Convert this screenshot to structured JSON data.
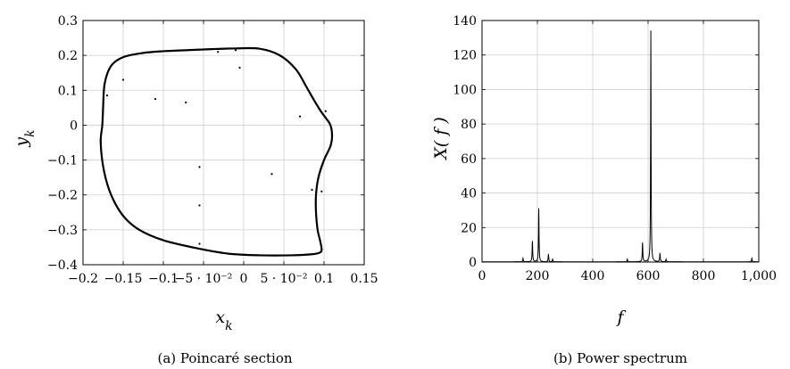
{
  "chart_data": [
    {
      "type": "scatter",
      "caption": "(a) Poincaré section",
      "xlabel": "x_k",
      "ylabel": "y_k",
      "xlim": [
        -0.2,
        0.15
      ],
      "ylim": [
        -0.4,
        0.3
      ],
      "grid": true,
      "x_tick_labels": [
        "−0.2",
        "−0.15",
        "−0.1",
        "−5 · 10⁻²",
        "0",
        "5 · 10⁻²",
        "0.1",
        "0.15"
      ],
      "x_ticks": [
        -0.2,
        -0.15,
        -0.1,
        -0.05,
        0,
        0.05,
        0.1,
        0.15
      ],
      "y_ticks": [
        -0.4,
        -0.3,
        -0.2,
        -0.1,
        0,
        0.1,
        0.2,
        0.3
      ],
      "y_tick_labels": [
        "−0.4",
        "−0.3",
        "−0.2",
        "−0.1",
        "0",
        "0.1",
        "0.2",
        "0.3"
      ],
      "curve": {
        "x": [
          -0.175,
          -0.173,
          -0.165,
          -0.15,
          -0.125,
          -0.1,
          -0.07,
          -0.04,
          -0.01,
          0.02,
          0.045,
          0.065,
          0.078,
          0.088,
          0.096,
          0.103,
          0.108,
          0.11,
          0.108,
          0.1,
          0.093,
          0.09,
          0.09,
          0.092,
          0.095,
          0.097,
          0.095,
          0.085,
          0.06,
          0.02,
          -0.02,
          -0.06,
          -0.1,
          -0.13,
          -0.15,
          -0.165,
          -0.174,
          -0.178,
          -0.176,
          -0.175
        ],
        "y": [
          0.05,
          0.12,
          0.17,
          0.195,
          0.207,
          0.212,
          0.215,
          0.218,
          0.22,
          0.219,
          0.2,
          0.16,
          0.11,
          0.07,
          0.04,
          0.018,
          0.0,
          -0.03,
          -0.06,
          -0.1,
          -0.15,
          -0.2,
          -0.25,
          -0.3,
          -0.33,
          -0.355,
          -0.365,
          -0.37,
          -0.373,
          -0.373,
          -0.368,
          -0.352,
          -0.33,
          -0.3,
          -0.26,
          -0.2,
          -0.13,
          -0.05,
          0.0,
          0.05
        ]
      },
      "points": {
        "x": [
          -0.17,
          -0.15,
          -0.11,
          -0.072,
          -0.055,
          -0.055,
          -0.055,
          -0.032,
          -0.01,
          -0.005,
          0.035,
          0.07,
          0.085,
          0.097,
          0.102
        ],
        "y": [
          0.085,
          0.13,
          0.075,
          0.065,
          -0.12,
          -0.23,
          -0.34,
          0.21,
          0.215,
          0.165,
          -0.14,
          0.025,
          -0.185,
          -0.19,
          0.04
        ]
      }
    },
    {
      "type": "line",
      "caption": "(b) Power spectrum",
      "xlabel": "f",
      "ylabel": "X( f )",
      "xlim": [
        0,
        1000
      ],
      "ylim": [
        0,
        140
      ],
      "grid": true,
      "x_ticks": [
        0,
        200,
        400,
        600,
        800,
        1000
      ],
      "x_tick_labels": [
        "0",
        "200",
        "400",
        "600",
        "800",
        "1,000"
      ],
      "y_ticks": [
        0,
        20,
        40,
        60,
        80,
        100,
        120,
        140
      ],
      "y_tick_labels": [
        "0",
        "20",
        "40",
        "60",
        "80",
        "100",
        "120",
        "140"
      ],
      "peaks": [
        {
          "f": 148,
          "a": 2.0,
          "w": 1.2
        },
        {
          "f": 182,
          "a": 12.0,
          "w": 1.2
        },
        {
          "f": 205,
          "a": 31.0,
          "w": 1.1
        },
        {
          "f": 240,
          "a": 4.5,
          "w": 1.2
        },
        {
          "f": 255,
          "a": 1.5,
          "w": 1.2
        },
        {
          "f": 525,
          "a": 1.5,
          "w": 1.2
        },
        {
          "f": 580,
          "a": 11.0,
          "w": 1.2
        },
        {
          "f": 610,
          "a": 134.0,
          "w": 1.0
        },
        {
          "f": 643,
          "a": 5.0,
          "w": 1.2
        },
        {
          "f": 665,
          "a": 1.5,
          "w": 1.2
        },
        {
          "f": 975,
          "a": 2.0,
          "w": 1.2
        }
      ]
    }
  ]
}
